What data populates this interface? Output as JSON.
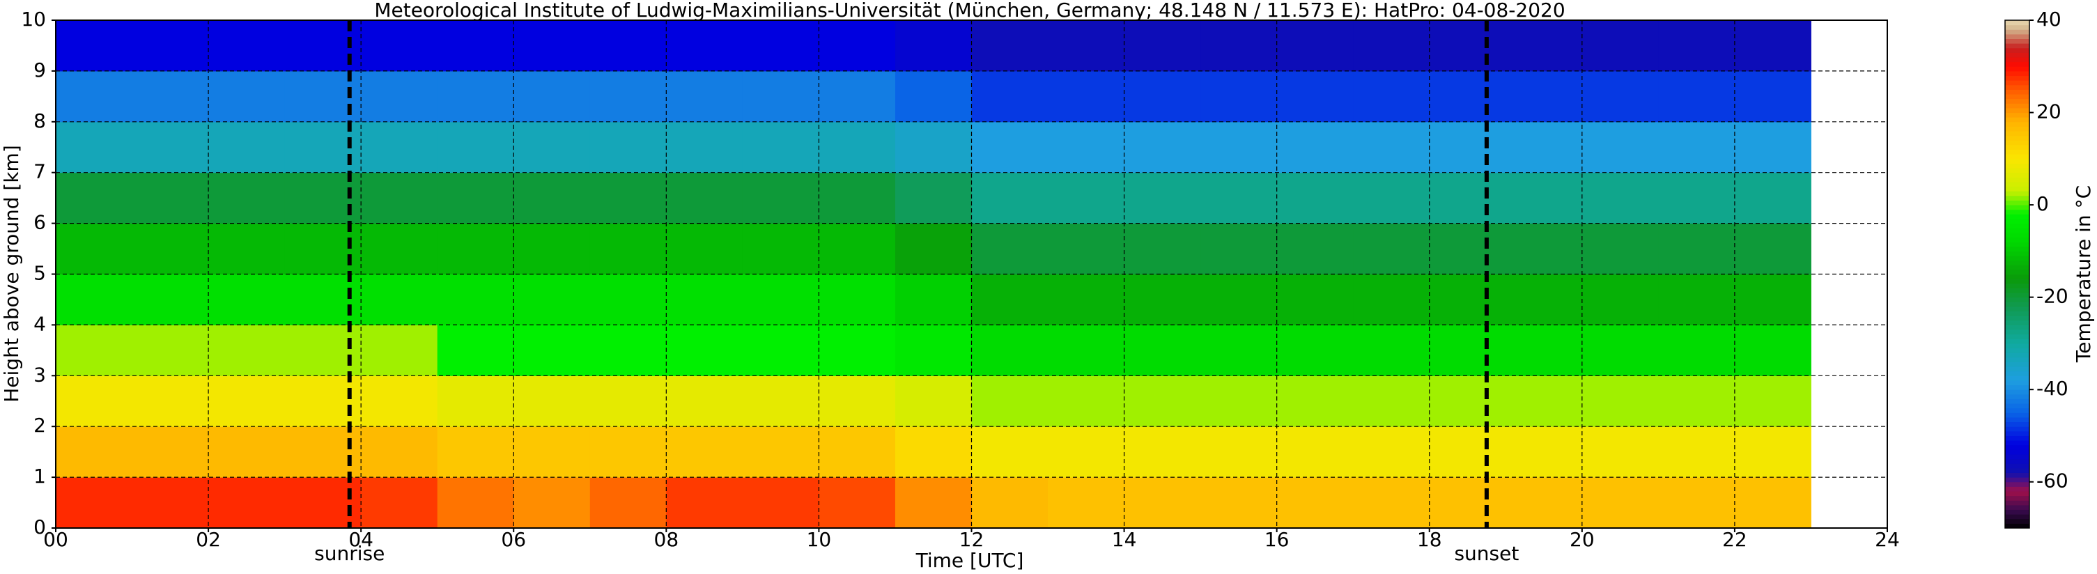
{
  "chart_data": {
    "type": "heatmap",
    "title": "Meteorological Institute of Ludwig-Maximilians-Universität (München, Germany; 48.148 N / 11.573 E):    HatPro: 04-08-2020",
    "x_label": "Time [UTC]",
    "y_label": "Height above ground [km]",
    "colorbar_label": "Temperature in $^\\circ$C",
    "xedges": [
      0,
      1,
      2,
      3,
      4,
      5,
      6,
      7,
      8,
      9,
      10,
      11,
      12,
      13,
      14,
      15,
      16,
      17,
      18,
      19,
      20,
      21,
      22,
      23
    ],
    "yedges": [
      0,
      1,
      2,
      3,
      4,
      5,
      6,
      7,
      8,
      9,
      10
    ],
    "z": [
      [
        28,
        28,
        28,
        28,
        27,
        23,
        21,
        24,
        27,
        27,
        26,
        21,
        17,
        16,
        16,
        16,
        16,
        16,
        16,
        16,
        16,
        16,
        16
      ],
      [
        17,
        17,
        17,
        17,
        17,
        15,
        15,
        15,
        15,
        15,
        15,
        12,
        9,
        9,
        9,
        9,
        9,
        9,
        9,
        9,
        9,
        9,
        9
      ],
      [
        9,
        9,
        9,
        9,
        9,
        7,
        7,
        7,
        7,
        7,
        7,
        5,
        2,
        2,
        2,
        2,
        2,
        2,
        2,
        2,
        2,
        2,
        2
      ],
      [
        2,
        2,
        2,
        2,
        2,
        -2,
        -2,
        -2,
        -2,
        -2,
        -2,
        -4,
        -7,
        -7,
        -7,
        -7,
        -7,
        -7,
        -7,
        -7,
        -7,
        -7,
        -7
      ],
      [
        -6,
        -6,
        -6,
        -6,
        -6,
        -6,
        -6,
        -6,
        -6,
        -6,
        -6,
        -9,
        -13,
        -13,
        -13,
        -13,
        -13,
        -13,
        -13,
        -13,
        -13,
        -13,
        -13
      ],
      [
        -12,
        -12,
        -12,
        -12,
        -12,
        -12,
        -12,
        -12,
        -12,
        -12,
        -12,
        -15,
        -20,
        -20,
        -20,
        -20,
        -20,
        -20,
        -20,
        -20,
        -20,
        -20,
        -20
      ],
      [
        -20,
        -20,
        -20,
        -20,
        -20,
        -20,
        -20,
        -20,
        -20,
        -20,
        -20,
        -23,
        -28,
        -28,
        -28,
        -28,
        -28,
        -28,
        -28,
        -28,
        -28,
        -28,
        -28
      ],
      [
        -33,
        -33,
        -33,
        -33,
        -33,
        -33,
        -33,
        -33,
        -33,
        -33,
        -33,
        -35,
        -38,
        -38,
        -38,
        -38,
        -38,
        -38,
        -38,
        -38,
        -38,
        -38,
        -38
      ],
      [
        -42,
        -42,
        -42,
        -42,
        -42,
        -42,
        -42,
        -42,
        -42,
        -42,
        -42,
        -45,
        -48,
        -48,
        -48,
        -48,
        -48,
        -48,
        -48,
        -48,
        -48,
        -48,
        -48
      ],
      [
        -52,
        -52,
        -52,
        -52,
        -52,
        -52,
        -52,
        -52,
        -52,
        -52,
        -52,
        -54,
        -57,
        -57,
        -57,
        -57,
        -57,
        -57,
        -57,
        -57,
        -57,
        -57,
        -57
      ]
    ],
    "xlim": [
      0,
      24
    ],
    "ylim": [
      0,
      10
    ],
    "xticks": [
      {
        "value": 0,
        "label": "00"
      },
      {
        "value": 2,
        "label": "02"
      },
      {
        "value": 4,
        "label": "04"
      },
      {
        "value": 6,
        "label": "06"
      },
      {
        "value": 8,
        "label": "08"
      },
      {
        "value": 10,
        "label": "10"
      },
      {
        "value": 12,
        "label": "12"
      },
      {
        "value": 14,
        "label": "14"
      },
      {
        "value": 16,
        "label": "16"
      },
      {
        "value": 18,
        "label": "18"
      },
      {
        "value": 20,
        "label": "20"
      },
      {
        "value": 22,
        "label": "22"
      },
      {
        "value": 24,
        "label": "24"
      }
    ],
    "yticks": [
      0,
      1,
      2,
      3,
      4,
      5,
      6,
      7,
      8,
      9,
      10
    ],
    "grid": true,
    "clim": [
      -70,
      40
    ],
    "cticks": [
      -60,
      -40,
      -20,
      0,
      20,
      40
    ],
    "colormap": [
      {
        "value": -70,
        "color": "#000000"
      },
      {
        "value": -66,
        "color": "#3a0a50"
      },
      {
        "value": -62,
        "color": "#a0104a"
      },
      {
        "value": -58,
        "color": "#1010b0"
      },
      {
        "value": -52,
        "color": "#0000e0"
      },
      {
        "value": -45,
        "color": "#0a64e6"
      },
      {
        "value": -38,
        "color": "#1e9ee0"
      },
      {
        "value": -30,
        "color": "#10aaa0"
      },
      {
        "value": -22,
        "color": "#109a50"
      },
      {
        "value": -16,
        "color": "#0a9a0a"
      },
      {
        "value": -8,
        "color": "#00d800"
      },
      {
        "value": -2,
        "color": "#00f000"
      },
      {
        "value": 3,
        "color": "#c8f000"
      },
      {
        "value": 10,
        "color": "#fae600"
      },
      {
        "value": 18,
        "color": "#ffb400"
      },
      {
        "value": 25,
        "color": "#ff5a00"
      },
      {
        "value": 30,
        "color": "#ff0a00"
      },
      {
        "value": 34,
        "color": "#c81e1e"
      },
      {
        "value": 38,
        "color": "#d2b48c"
      },
      {
        "value": 40,
        "color": "#e8d8b0"
      }
    ],
    "annotations": [
      {
        "x": 3.85,
        "label": "sunrise"
      },
      {
        "x": 18.75,
        "label": "sunset"
      }
    ]
  }
}
